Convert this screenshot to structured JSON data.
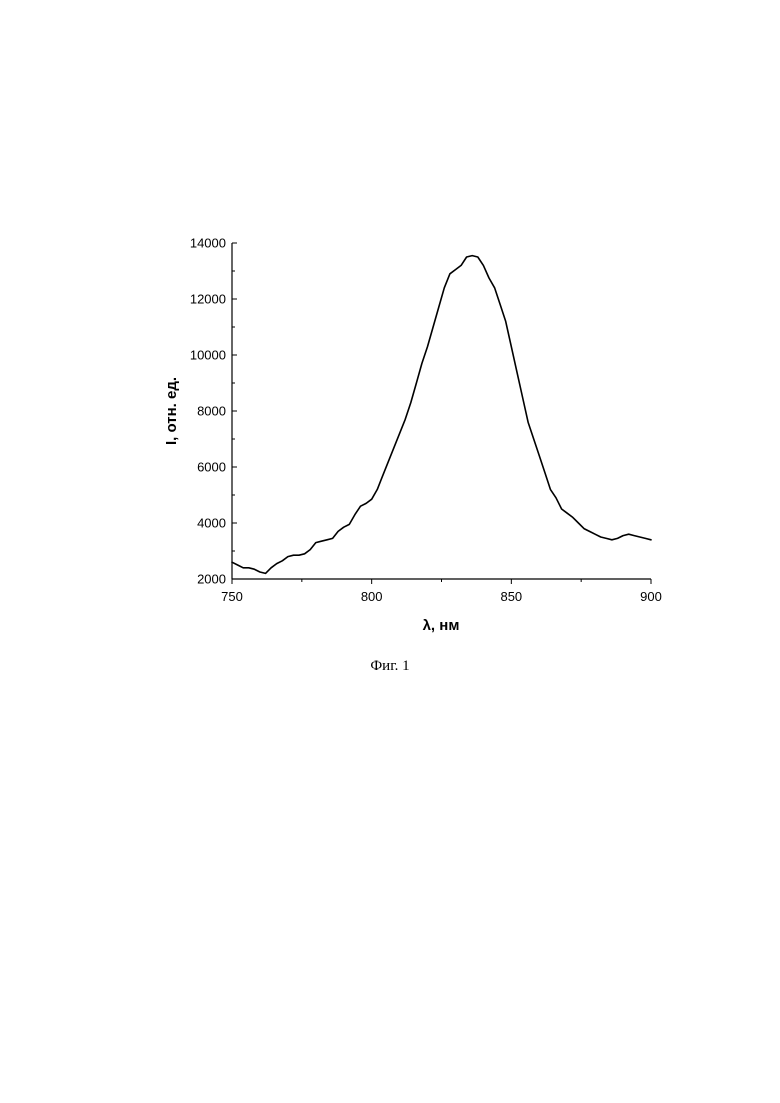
{
  "chart_data": {
    "type": "line",
    "xlabel": "λ, нм",
    "ylabel": "I, отн. ед.",
    "xlim": [
      750,
      900
    ],
    "ylim": [
      2000,
      14000
    ],
    "x_ticks": [
      750,
      800,
      850,
      900
    ],
    "y_ticks": [
      2000,
      4000,
      6000,
      8000,
      10000,
      12000,
      14000
    ],
    "grid": false,
    "series": [
      {
        "color": "#000000",
        "x": [
          750,
          752,
          754,
          756,
          758,
          760,
          762,
          764,
          766,
          768,
          770,
          772,
          774,
          776,
          778,
          780,
          782,
          784,
          786,
          788,
          790,
          792,
          794,
          796,
          798,
          800,
          802,
          804,
          806,
          808,
          810,
          812,
          814,
          816,
          818,
          820,
          822,
          824,
          826,
          828,
          830,
          832,
          834,
          836,
          838,
          840,
          842,
          844,
          846,
          848,
          850,
          852,
          854,
          856,
          858,
          860,
          862,
          864,
          866,
          868,
          870,
          872,
          874,
          876,
          878,
          880,
          882,
          884,
          886,
          888,
          890,
          892,
          894,
          896,
          898,
          900
        ],
        "y": [
          2600,
          2500,
          2400,
          2400,
          2350,
          2250,
          2200,
          2400,
          2550,
          2650,
          2800,
          2850,
          2850,
          2900,
          3050,
          3300,
          3350,
          3400,
          3450,
          3700,
          3850,
          3950,
          4300,
          4600,
          4700,
          4850,
          5200,
          5700,
          6200,
          6700,
          7200,
          7700,
          8300,
          9000,
          9700,
          10300,
          11000,
          11700,
          12400,
          12900,
          13050,
          13200,
          13500,
          13550,
          13500,
          13200,
          12750,
          12400,
          11800,
          11200,
          10300,
          9400,
          8500,
          7600,
          7000,
          6400,
          5800,
          5200,
          4900,
          4500,
          4350,
          4200,
          4000,
          3800,
          3700,
          3600,
          3500,
          3450,
          3400,
          3450,
          3550,
          3600,
          3550,
          3500,
          3450,
          3400
        ]
      }
    ]
  },
  "caption": "Фиг. 1"
}
